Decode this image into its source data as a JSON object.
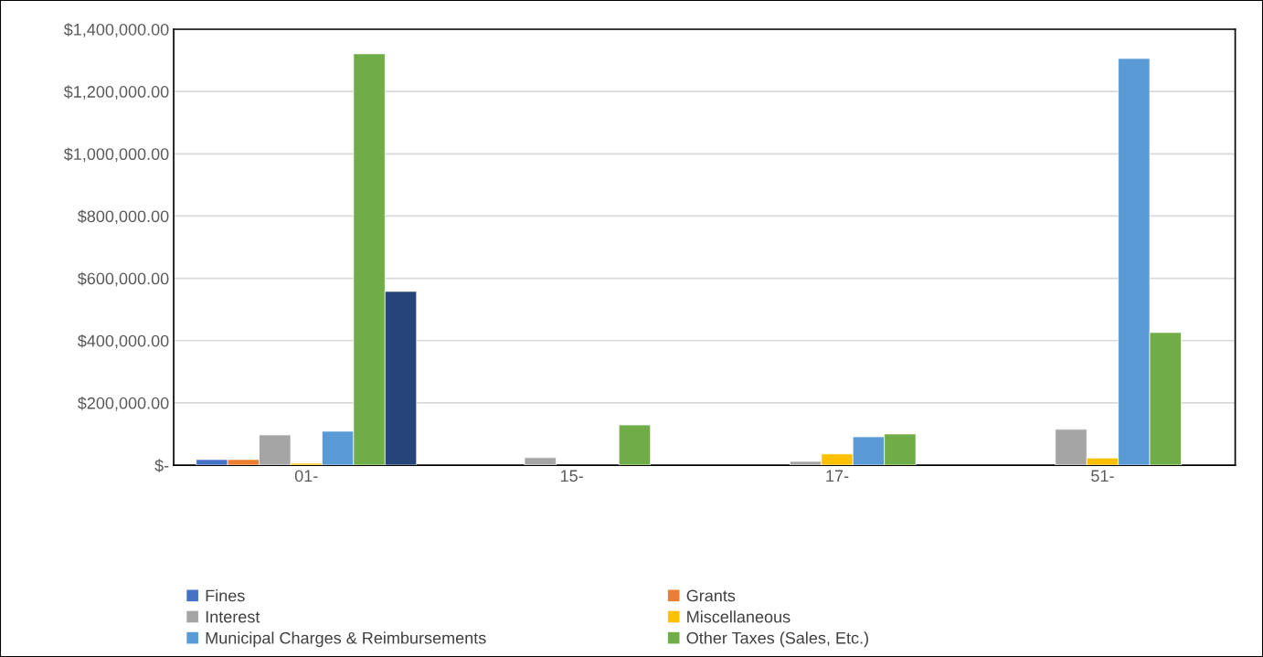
{
  "chart_data": {
    "type": "bar",
    "categories": [
      "01-",
      "15-",
      "17-",
      "51-"
    ],
    "series": [
      {
        "name": "Fines",
        "color": "#4472c4",
        "values": [
          18000,
          null,
          null,
          null
        ]
      },
      {
        "name": "Grants",
        "color": "#ed7d31",
        "values": [
          18000,
          null,
          null,
          null
        ]
      },
      {
        "name": "Interest",
        "color": "#a5a5a5",
        "values": [
          97000,
          24000,
          12000,
          115000
        ]
      },
      {
        "name": "Miscellaneous",
        "color": "#ffc000",
        "values": [
          6000,
          null,
          36000,
          23000
        ]
      },
      {
        "name": "Municipal Charges & Reimbursements",
        "color": "#5b9bd5",
        "values": [
          109000,
          null,
          91000,
          1306000
        ]
      },
      {
        "name": "Other Taxes (Sales, Etc.)",
        "color": "#70ad47",
        "values": [
          1321000,
          129000,
          100000,
          426000
        ]
      },
      {
        "color": "#264478",
        "values": [
          558000,
          null,
          null,
          null
        ]
      }
    ],
    "ylim": [
      0,
      1400000
    ],
    "yticks": [
      {
        "value": 0,
        "label": "$-"
      },
      {
        "value": 200000,
        "label": "$200,000.00"
      },
      {
        "value": 400000,
        "label": "$400,000.00"
      },
      {
        "value": 600000,
        "label": "$600,000.00"
      },
      {
        "value": 800000,
        "label": "$800,000.00"
      },
      {
        "value": 1000000,
        "label": "$1,000,000.00"
      },
      {
        "value": 1200000,
        "label": "$1,200,000.00"
      },
      {
        "value": 1400000,
        "label": "$1,400,000.00"
      }
    ],
    "grid": "y",
    "legend": "bottom"
  }
}
